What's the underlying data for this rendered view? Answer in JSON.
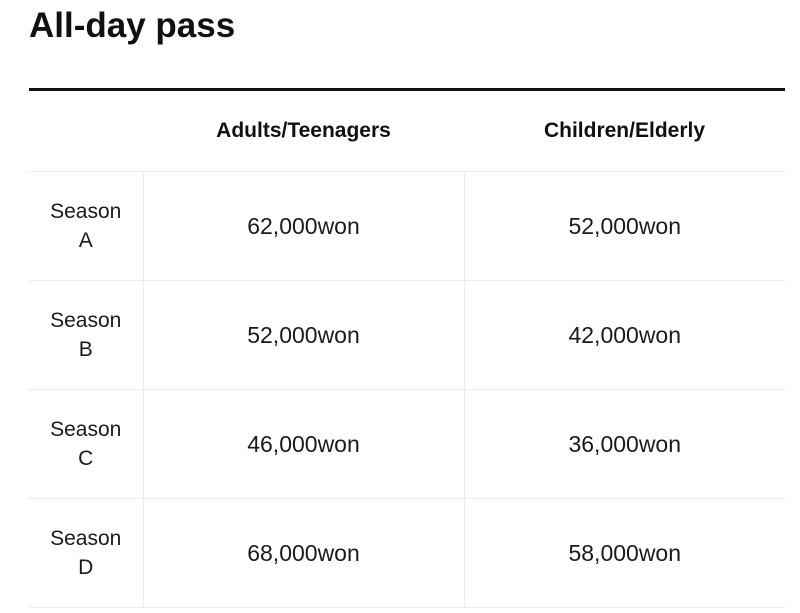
{
  "page": {
    "title": "All-day pass"
  },
  "table": {
    "headers": [
      "",
      "Adults/Teenagers",
      "Children/Elderly"
    ],
    "rows": [
      {
        "season_word": "Season",
        "season_letter": "A",
        "adults": "62,000won",
        "children": "52,000won"
      },
      {
        "season_word": "Season",
        "season_letter": "B",
        "adults": "52,000won",
        "children": "42,000won"
      },
      {
        "season_word": "Season",
        "season_letter": "C",
        "adults": "46,000won",
        "children": "36,000won"
      },
      {
        "season_word": "Season",
        "season_letter": "D",
        "adults": "68,000won",
        "children": "58,000won"
      }
    ]
  },
  "colors": {
    "text": "#111111",
    "top_rule": "#111111",
    "grid_lines": "#ececec",
    "background": "#ffffff"
  }
}
